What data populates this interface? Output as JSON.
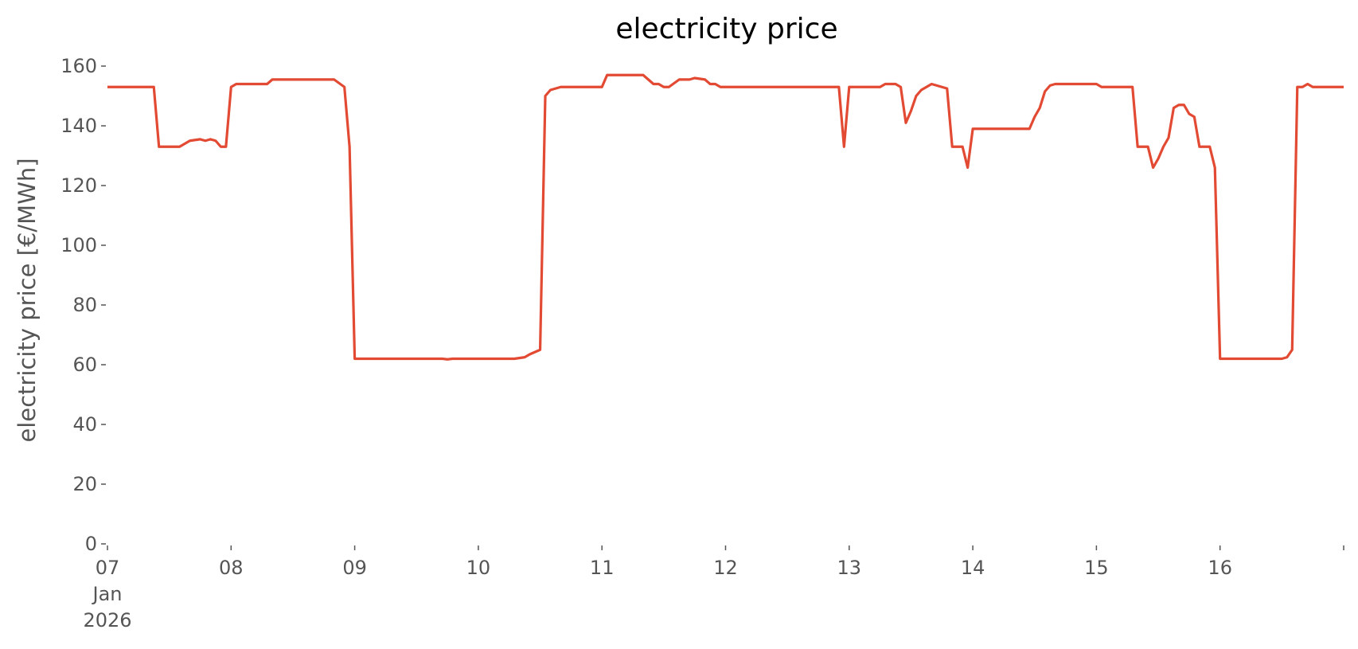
{
  "chart_data": {
    "type": "line",
    "title": "electricity price",
    "xlabel": "",
    "ylabel": "electricity price [€/MWh]",
    "ylim": [
      0,
      160
    ],
    "xlim": [
      "2026-01-07T00:00",
      "2026-01-17T00:00"
    ],
    "grid": false,
    "legend": "none",
    "y_ticks": [
      0,
      20,
      40,
      60,
      80,
      100,
      120,
      140,
      160
    ],
    "x_ticks": [
      {
        "date": "2026-01-07",
        "lines": [
          "07",
          "Jan",
          "2026"
        ]
      },
      {
        "date": "2026-01-08",
        "lines": [
          "08"
        ]
      },
      {
        "date": "2026-01-09",
        "lines": [
          "09"
        ]
      },
      {
        "date": "2026-01-10",
        "lines": [
          "10"
        ]
      },
      {
        "date": "2026-01-11",
        "lines": [
          "11"
        ]
      },
      {
        "date": "2026-01-12",
        "lines": [
          "12"
        ]
      },
      {
        "date": "2026-01-13",
        "lines": [
          "13"
        ]
      },
      {
        "date": "2026-01-14",
        "lines": [
          "14"
        ]
      },
      {
        "date": "2026-01-15",
        "lines": [
          "15"
        ]
      },
      {
        "date": "2026-01-16",
        "lines": [
          "16"
        ]
      },
      {
        "date": "2026-01-17",
        "lines": [
          ""
        ]
      }
    ],
    "series": [
      {
        "color": "#E24A33",
        "points": [
          [
            "2026-01-07T00:00",
            153
          ],
          [
            "2026-01-07T09:00",
            153
          ],
          [
            "2026-01-07T10:00",
            133
          ],
          [
            "2026-01-07T14:00",
            133
          ],
          [
            "2026-01-07T16:00",
            135
          ],
          [
            "2026-01-07T18:00",
            135.5
          ],
          [
            "2026-01-07T19:00",
            135
          ],
          [
            "2026-01-07T20:00",
            135.5
          ],
          [
            "2026-01-07T21:00",
            135
          ],
          [
            "2026-01-07T22:00",
            133
          ],
          [
            "2026-01-07T23:00",
            133
          ],
          [
            "2026-01-08T00:00",
            153
          ],
          [
            "2026-01-08T01:00",
            154
          ],
          [
            "2026-01-08T07:00",
            154
          ],
          [
            "2026-01-08T08:00",
            155.5
          ],
          [
            "2026-01-08T20:00",
            155.5
          ],
          [
            "2026-01-08T22:00",
            153
          ],
          [
            "2026-01-08T23:00",
            133
          ],
          [
            "2026-01-09T00:00",
            62
          ],
          [
            "2026-01-09T17:00",
            62
          ],
          [
            "2026-01-09T18:00",
            61.8
          ],
          [
            "2026-01-09T19:00",
            62
          ],
          [
            "2026-01-10T07:00",
            62
          ],
          [
            "2026-01-10T09:00",
            62.5
          ],
          [
            "2026-01-10T10:00",
            63.5
          ],
          [
            "2026-01-10T12:00",
            65
          ],
          [
            "2026-01-10T13:00",
            150
          ],
          [
            "2026-01-10T14:00",
            152
          ],
          [
            "2026-01-10T16:00",
            153
          ],
          [
            "2026-01-11T00:00",
            153
          ],
          [
            "2026-01-11T01:00",
            157
          ],
          [
            "2026-01-11T08:00",
            157
          ],
          [
            "2026-01-11T10:00",
            154
          ],
          [
            "2026-01-11T11:00",
            154
          ],
          [
            "2026-01-11T12:00",
            153
          ],
          [
            "2026-01-11T13:00",
            153
          ],
          [
            "2026-01-11T15:00",
            155.5
          ],
          [
            "2026-01-11T17:00",
            155.5
          ],
          [
            "2026-01-11T18:00",
            156
          ],
          [
            "2026-01-11T20:00",
            155.5
          ],
          [
            "2026-01-11T21:00",
            154
          ],
          [
            "2026-01-11T22:00",
            154
          ],
          [
            "2026-01-11T23:00",
            153
          ],
          [
            "2026-01-12T22:00",
            153
          ],
          [
            "2026-01-12T23:00",
            133
          ],
          [
            "2026-01-13T00:00",
            153
          ],
          [
            "2026-01-13T06:00",
            153
          ],
          [
            "2026-01-13T07:00",
            154
          ],
          [
            "2026-01-13T09:00",
            154
          ],
          [
            "2026-01-13T10:00",
            153
          ],
          [
            "2026-01-13T11:00",
            141
          ],
          [
            "2026-01-13T12:00",
            145
          ],
          [
            "2026-01-13T13:00",
            150
          ],
          [
            "2026-01-13T14:00",
            152
          ],
          [
            "2026-01-13T15:00",
            153
          ],
          [
            "2026-01-13T16:00",
            154
          ],
          [
            "2026-01-13T18:00",
            153
          ],
          [
            "2026-01-13T19:00",
            152.5
          ],
          [
            "2026-01-13T20:00",
            133
          ],
          [
            "2026-01-13T22:00",
            133
          ],
          [
            "2026-01-13T23:00",
            126
          ],
          [
            "2026-01-14T00:00",
            139
          ],
          [
            "2026-01-14T11:00",
            139
          ],
          [
            "2026-01-14T12:00",
            143
          ],
          [
            "2026-01-14T13:00",
            146
          ],
          [
            "2026-01-14T14:00",
            151.5
          ],
          [
            "2026-01-14T15:00",
            153.5
          ],
          [
            "2026-01-14T16:00",
            154
          ],
          [
            "2026-01-15T00:00",
            154
          ],
          [
            "2026-01-15T01:00",
            153
          ],
          [
            "2026-01-15T07:00",
            153
          ],
          [
            "2026-01-15T08:00",
            133
          ],
          [
            "2026-01-15T10:00",
            133
          ],
          [
            "2026-01-15T11:00",
            126
          ],
          [
            "2026-01-15T12:00",
            129
          ],
          [
            "2026-01-15T13:00",
            133
          ],
          [
            "2026-01-15T14:00",
            136
          ],
          [
            "2026-01-15T15:00",
            146
          ],
          [
            "2026-01-15T16:00",
            147
          ],
          [
            "2026-01-15T17:00",
            147
          ],
          [
            "2026-01-15T18:00",
            144
          ],
          [
            "2026-01-15T19:00",
            143
          ],
          [
            "2026-01-15T20:00",
            133
          ],
          [
            "2026-01-15T22:00",
            133
          ],
          [
            "2026-01-15T23:00",
            126
          ],
          [
            "2026-01-16T00:00",
            62
          ],
          [
            "2026-01-16T12:00",
            62
          ],
          [
            "2026-01-16T13:00",
            62.5
          ],
          [
            "2026-01-16T14:00",
            65
          ],
          [
            "2026-01-16T15:00",
            153
          ],
          [
            "2026-01-16T16:00",
            153
          ],
          [
            "2026-01-16T17:00",
            154
          ],
          [
            "2026-01-16T18:00",
            153
          ],
          [
            "2026-01-17T00:00",
            153
          ]
        ]
      }
    ]
  }
}
